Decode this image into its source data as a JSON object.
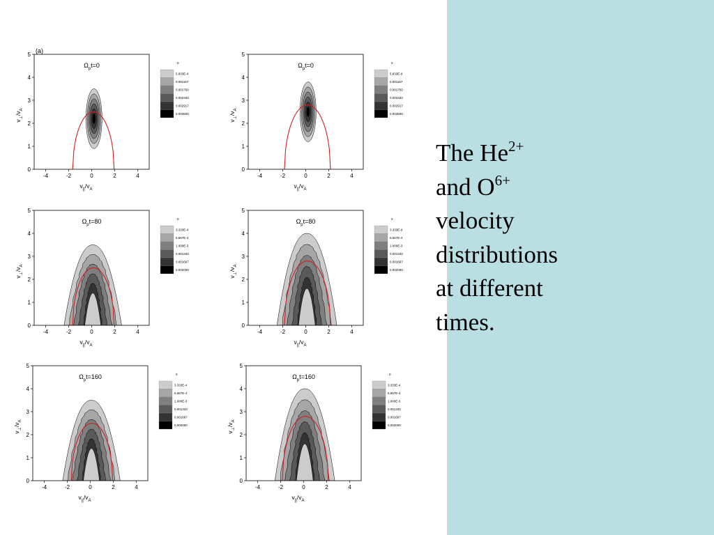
{
  "slide": {
    "caption": {
      "line1_main": "The He",
      "line1_sup": "2+",
      "line2_main": "and O",
      "line2_sup": "6+",
      "line3": "velocity",
      "line4": "distributions",
      "line5": "at different",
      "line6": "times."
    },
    "sidebar_color": "#b9dfe3",
    "panel_label": "(a)"
  },
  "chart_data": [
    {
      "type": "heatmap",
      "species": "He2+",
      "title_symbol": "Ω",
      "title_sub": "p",
      "title_tail": "t=0",
      "xticks": [
        -4,
        -2,
        0,
        2,
        4
      ],
      "yticks": [
        0,
        1,
        2,
        3,
        4,
        5
      ],
      "xlim": [
        -5,
        5
      ],
      "ylim": [
        0,
        5
      ],
      "xlabel_main": "v",
      "xlabel_sub": "||",
      "xlabel_slash": "/v",
      "xlabel_sub2": "A",
      "ylabel_main": "v",
      "ylabel_sub": "⊥",
      "ylabel_slash": "/v",
      "ylabel_sub2": "A",
      "legend_levels": [
        "0",
        "5.833E-4",
        "0.001167",
        "0.001750",
        "0.002333",
        "0.002917",
        "0.003500"
      ],
      "center": [
        0.2,
        2.2
      ],
      "halfwidth": 0.7,
      "height": 1.3,
      "curve_vpar": 1.8,
      "curve_peak": 2.5,
      "shape": "blob"
    },
    {
      "type": "heatmap",
      "species": "O6+",
      "title_symbol": "Ω",
      "title_sub": "p",
      "title_tail": "t=0",
      "xticks": [
        -4,
        -2,
        0,
        2,
        4
      ],
      "yticks": [
        0,
        1,
        2,
        3,
        4,
        5
      ],
      "xlim": [
        -5,
        5
      ],
      "ylim": [
        0,
        5
      ],
      "xlabel_main": "v",
      "xlabel_sub": "||",
      "xlabel_slash": "/v",
      "xlabel_sub2": "A",
      "ylabel_main": "v",
      "ylabel_sub": "⊥",
      "ylabel_slash": "/v",
      "ylabel_sub2": "A",
      "legend_levels": [
        "0",
        "5.833E-4",
        "0.001167",
        "0.001750",
        "0.002333",
        "0.002917",
        "0.003500"
      ],
      "center": [
        0.2,
        2.5
      ],
      "halfwidth": 0.7,
      "height": 1.3,
      "curve_vpar": 2.0,
      "curve_peak": 2.8,
      "shape": "blob"
    },
    {
      "type": "heatmap",
      "species": "He2+",
      "title_symbol": "Ω",
      "title_sub": "p",
      "title_tail": "t=80",
      "xticks": [
        -4,
        -2,
        0,
        2,
        4
      ],
      "yticks": [
        0,
        1,
        2,
        3,
        4,
        5
      ],
      "xlim": [
        -5,
        5
      ],
      "ylim": [
        0,
        5
      ],
      "xlabel_main": "v",
      "xlabel_sub": "||",
      "xlabel_slash": "/v",
      "xlabel_sub2": "A",
      "ylabel_main": "v",
      "ylabel_sub": "⊥",
      "ylabel_slash": "/v",
      "ylabel_sub2": "A",
      "legend_levels": [
        "0",
        "3.333E-4",
        "6.667E-4",
        "1.000E-3",
        "0.001333",
        "0.001667",
        "0.002000"
      ],
      "center": [
        0.1,
        3.5
      ],
      "halfwidth": 2.5,
      "height": 3.5,
      "curve_vpar": 1.8,
      "curve_peak": 2.5,
      "shape": "arch"
    },
    {
      "type": "heatmap",
      "species": "O6+",
      "title_symbol": "Ω",
      "title_sub": "p",
      "title_tail": "t=80",
      "xticks": [
        -4,
        -2,
        0,
        2,
        4
      ],
      "yticks": [
        0,
        1,
        2,
        3,
        4,
        5
      ],
      "xlim": [
        -5,
        5
      ],
      "ylim": [
        0,
        5
      ],
      "xlabel_main": "v",
      "xlabel_sub": "||",
      "xlabel_slash": "/v",
      "xlabel_sub2": "A",
      "ylabel_main": "v",
      "ylabel_sub": "⊥",
      "ylabel_slash": "/v",
      "ylabel_sub2": "A",
      "legend_levels": [
        "0",
        "3.333E-4",
        "6.667E-4",
        "1.000E-3",
        "0.001333",
        "0.001667",
        "0.002000"
      ],
      "center": [
        0.1,
        4.0
      ],
      "halfwidth": 2.6,
      "height": 4.0,
      "curve_vpar": 2.0,
      "curve_peak": 2.8,
      "shape": "arch"
    },
    {
      "type": "heatmap",
      "species": "He2+",
      "title_symbol": "Ω",
      "title_sub": "p",
      "title_tail": "t=160",
      "xticks": [
        -4,
        -2,
        0,
        2,
        4
      ],
      "yticks": [
        0,
        1,
        2,
        3,
        4,
        5
      ],
      "xlim": [
        -5,
        5
      ],
      "ylim": [
        0,
        5
      ],
      "xlabel_main": "v",
      "xlabel_sub": "||",
      "xlabel_slash": "/v",
      "xlabel_sub2": "A",
      "ylabel_main": "v",
      "ylabel_sub": "⊥",
      "ylabel_slash": "/v",
      "ylabel_sub2": "A",
      "legend_levels": [
        "0",
        "3.333E-4",
        "6.667E-4",
        "1.000E-3",
        "0.001333",
        "0.001667",
        "0.002000"
      ],
      "center": [
        0.1,
        3.5
      ],
      "halfwidth": 2.5,
      "height": 3.5,
      "curve_vpar": 1.8,
      "curve_peak": 2.5,
      "shape": "arch"
    },
    {
      "type": "heatmap",
      "species": "O6+",
      "title_symbol": "Ω",
      "title_sub": "p",
      "title_tail": "t=160",
      "xticks": [
        -4,
        -2,
        0,
        2,
        4
      ],
      "yticks": [
        0,
        1,
        2,
        3,
        4,
        5
      ],
      "xlim": [
        -5,
        5
      ],
      "ylim": [
        0,
        5
      ],
      "xlabel_main": "v",
      "xlabel_sub": "||",
      "xlabel_slash": "/v",
      "xlabel_sub2": "A",
      "ylabel_main": "v",
      "ylabel_sub": "⊥",
      "ylabel_slash": "/v",
      "ylabel_sub2": "A",
      "legend_levels": [
        "0",
        "3.333E-4",
        "6.667E-4",
        "1.000E-3",
        "0.001333",
        "0.001667",
        "0.002000"
      ],
      "center": [
        0.1,
        4.0
      ],
      "halfwidth": 2.6,
      "height": 4.0,
      "curve_vpar": 2.0,
      "curve_peak": 2.8,
      "shape": "arch"
    }
  ],
  "colors": {
    "curve": "#d42020",
    "levels": [
      "#ffffff",
      "#cccccc",
      "#a6a6a6",
      "#7f7f7f",
      "#595959",
      "#333333",
      "#000000"
    ]
  }
}
